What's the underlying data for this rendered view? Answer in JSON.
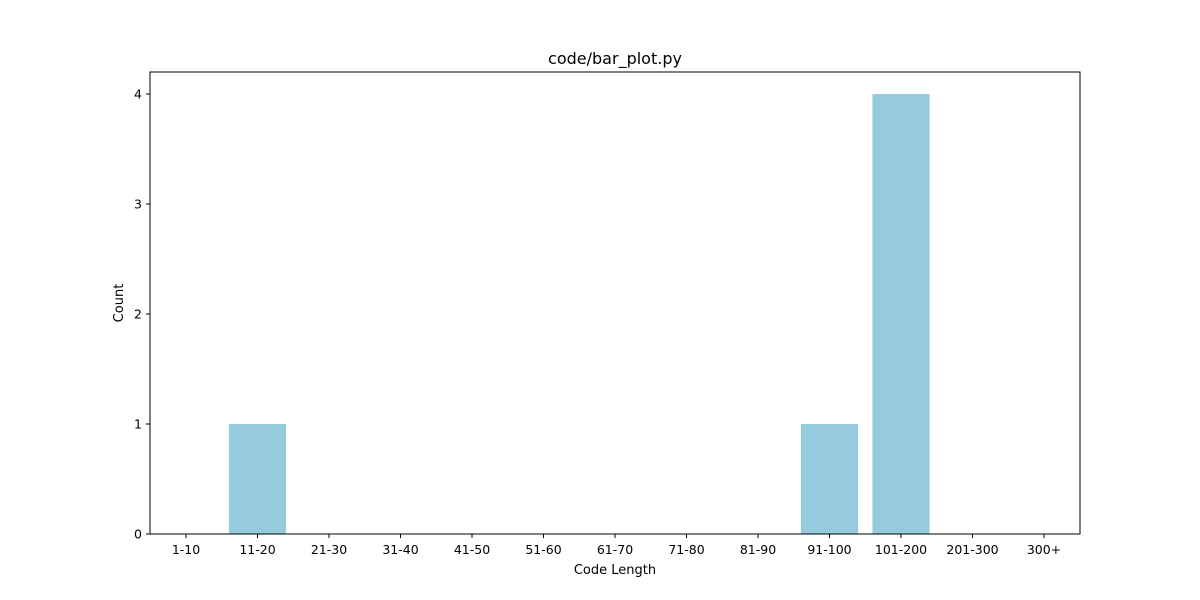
{
  "chart_data": {
    "type": "bar",
    "title": "code/bar_plot.py",
    "xlabel": "Code Length",
    "ylabel": "Count",
    "categories": [
      "1-10",
      "11-20",
      "21-30",
      "31-40",
      "41-50",
      "51-60",
      "61-70",
      "71-80",
      "81-90",
      "91-100",
      "101-200",
      "201-300",
      "300+"
    ],
    "values": [
      0,
      1,
      0,
      0,
      0,
      0,
      0,
      0,
      0,
      1,
      4,
      0,
      0
    ],
    "ylim": [
      0,
      4.2
    ],
    "yticks": [
      0,
      1,
      2,
      3,
      4
    ],
    "bar_color": "#96cadd",
    "grid": false,
    "legend": "none"
  }
}
